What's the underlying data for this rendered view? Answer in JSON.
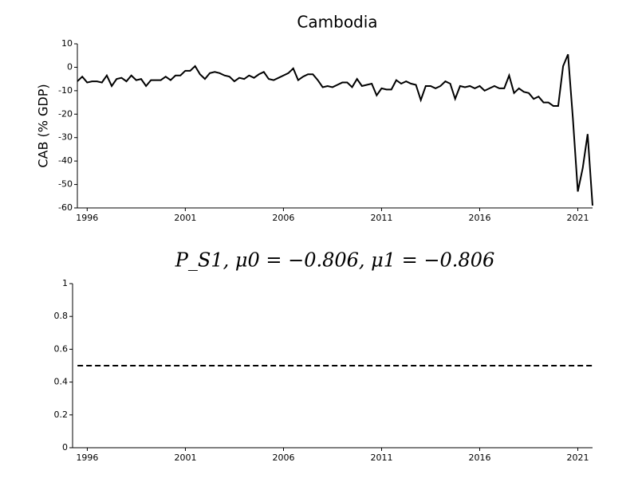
{
  "chart_data": [
    {
      "type": "line",
      "title": "Cambodia",
      "y_label": "CAB (% GDP)",
      "x": [
        1995.5,
        1995.75,
        1996,
        1996.25,
        1996.5,
        1996.75,
        1997,
        1997.25,
        1997.5,
        1997.75,
        1998,
        1998.25,
        1998.5,
        1998.75,
        1999,
        1999.25,
        1999.5,
        1999.75,
        2000,
        2000.25,
        2000.5,
        2000.75,
        2001,
        2001.25,
        2001.5,
        2001.75,
        2002,
        2002.25,
        2002.5,
        2002.75,
        2003,
        2003.25,
        2003.5,
        2003.75,
        2004,
        2004.25,
        2004.5,
        2004.75,
        2005,
        2005.25,
        2005.5,
        2005.75,
        2006,
        2006.25,
        2006.5,
        2006.75,
        2007,
        2007.25,
        2007.5,
        2007.75,
        2008,
        2008.25,
        2008.5,
        2008.75,
        2009,
        2009.25,
        2009.5,
        2009.75,
        2010,
        2010.25,
        2010.5,
        2010.75,
        2011,
        2011.25,
        2011.5,
        2011.75,
        2012,
        2012.25,
        2012.5,
        2012.75,
        2013,
        2013.25,
        2013.5,
        2013.75,
        2014,
        2014.25,
        2014.5,
        2014.75,
        2015,
        2015.25,
        2015.5,
        2015.75,
        2016,
        2016.25,
        2016.5,
        2016.75,
        2017,
        2017.25,
        2017.5,
        2017.75,
        2018,
        2018.25,
        2018.5,
        2018.75,
        2019,
        2019.25,
        2019.5,
        2019.75,
        2020,
        2020.25,
        2020.5,
        2020.75,
        2021,
        2021.25,
        2021.5,
        2021.75
      ],
      "series": [
        {
          "color": "#000000",
          "dashed": false,
          "values": [
            -6,
            -4,
            -6.5,
            -6,
            -6,
            -6.5,
            -3.5,
            -8,
            -5,
            -4.5,
            -6,
            -3.5,
            -5.5,
            -5,
            -8,
            -5.5,
            -5.5,
            -5.5,
            -4,
            -5.5,
            -3.5,
            -3.5,
            -1.5,
            -1.5,
            0.5,
            -3,
            -5,
            -2.5,
            -2,
            -2.5,
            -3.5,
            -4,
            -6,
            -4.5,
            -5,
            -3.5,
            -4.5,
            -3,
            -2,
            -5,
            -5.5,
            -4.5,
            -3.5,
            -2.5,
            -0.5,
            -5.5,
            -4,
            -3,
            -3,
            -5.5,
            -8.5,
            -8,
            -8.5,
            -7.5,
            -6.5,
            -6.5,
            -8.5,
            -5,
            -8,
            -7.5,
            -7,
            -12,
            -9,
            -9.5,
            -9.5,
            -5.5,
            -7,
            -6,
            -7,
            -7.5,
            -14,
            -8,
            -8,
            -9,
            -8,
            -6,
            -7,
            -13.5,
            -8,
            -8.5,
            -8,
            -9,
            -8,
            -10,
            -9,
            -8,
            -9,
            -9,
            -3.5,
            -11,
            -9,
            -10.5,
            -11,
            -13.5,
            -12.5,
            -15,
            -15,
            -16.5,
            -16.5,
            0.5,
            5.5,
            -22,
            -53,
            -43,
            -28.5,
            -59
          ]
        }
      ],
      "xlim": [
        1995.5,
        2021.75
      ],
      "xticks": [
        1996,
        2001,
        2006,
        2011,
        2016,
        2021
      ],
      "ylim": [
        -60,
        10
      ],
      "yticks": [
        10,
        0,
        -10,
        -20,
        -30,
        -40,
        -50,
        -60
      ]
    },
    {
      "type": "line",
      "title": "P_S1, μ0 = −0.806, μ1 = −0.806",
      "x": [
        1995.5,
        2021.75
      ],
      "series": [
        {
          "color": "#000000",
          "dashed": true,
          "values": [
            0.5,
            0.5
          ]
        }
      ],
      "xlim": [
        1995.25,
        2021.75
      ],
      "xticks": [
        1996,
        2001,
        2006,
        2011,
        2016,
        2021
      ],
      "ylim": [
        0,
        1
      ],
      "yticks": [
        1,
        0.8,
        0.6,
        0.4,
        0.2,
        0
      ]
    }
  ]
}
